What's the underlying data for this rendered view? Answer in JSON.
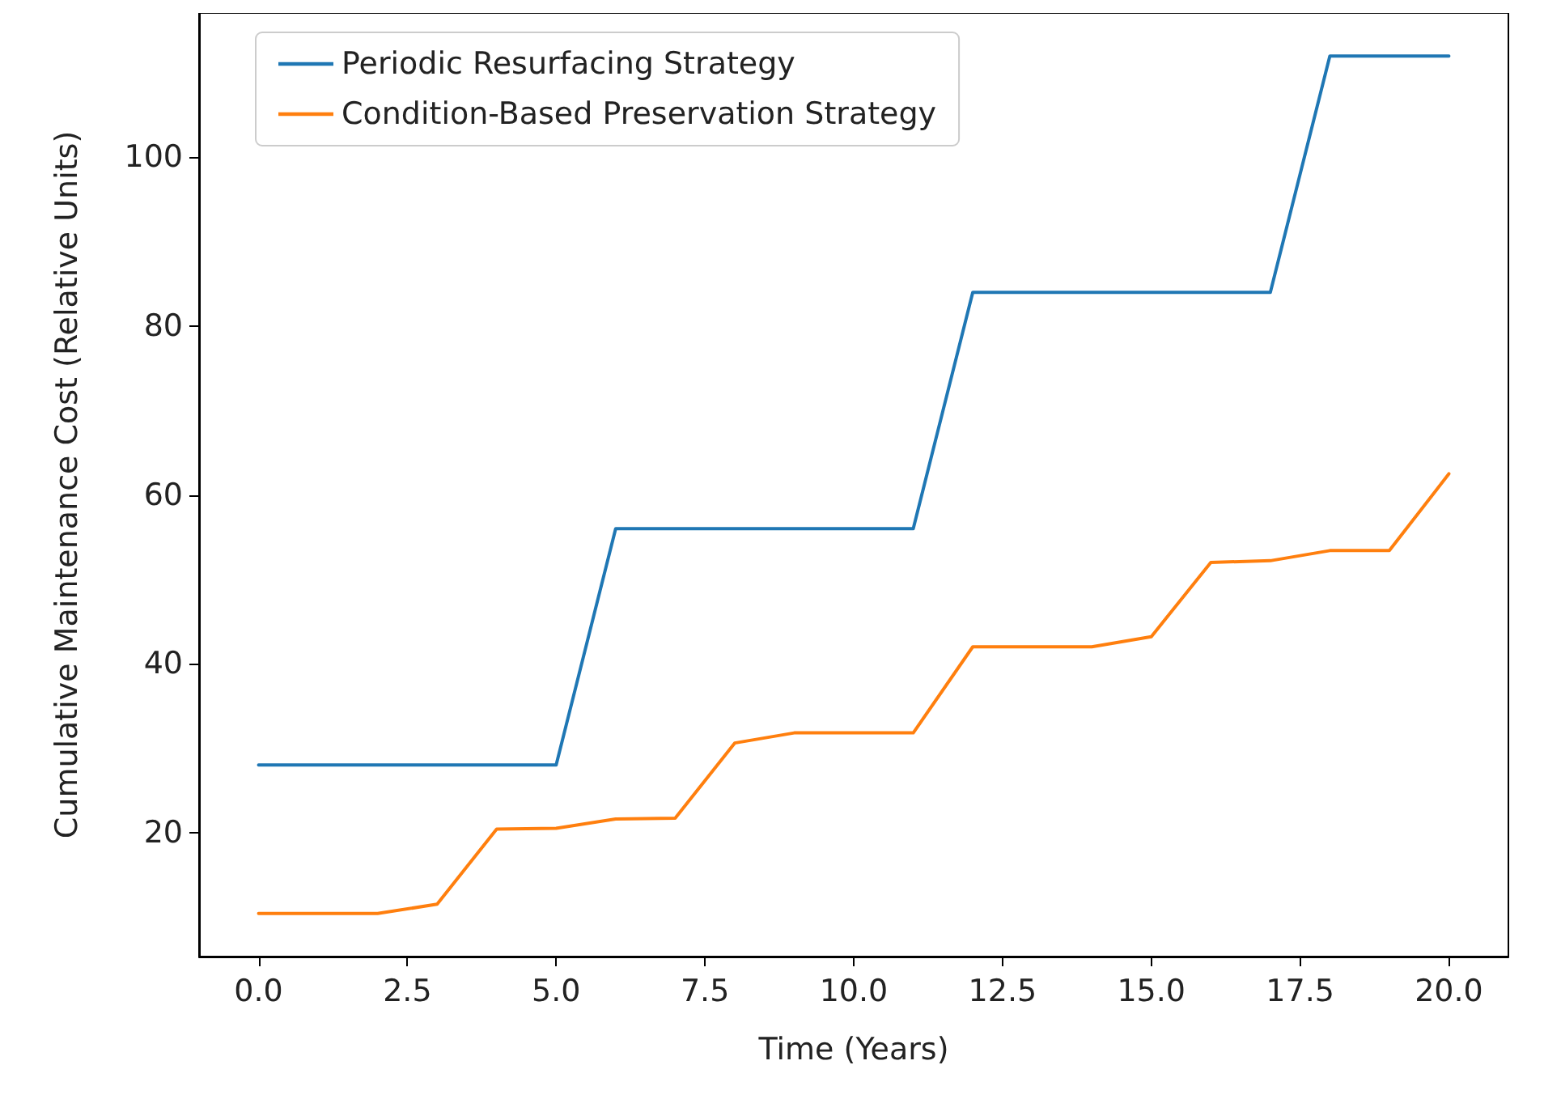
{
  "chart_data": {
    "type": "line",
    "xlabel": "Time (Years)",
    "ylabel": "Cumulative Maintenance Cost (Relative Units)",
    "x": [
      0,
      1,
      2,
      3,
      4,
      5,
      6,
      7,
      8,
      9,
      10,
      11,
      12,
      13,
      14,
      15,
      16,
      17,
      18,
      19,
      20
    ],
    "series": [
      {
        "name": "Periodic Resurfacing Strategy",
        "color": "#1f77b4",
        "values": [
          28,
          28,
          28,
          28,
          28,
          28,
          56,
          56,
          56,
          56,
          56,
          56,
          84,
          84,
          84,
          84,
          84,
          84,
          112,
          112,
          112
        ]
      },
      {
        "name": "Condition-Based Preservation Strategy",
        "color": "#ff7f0e",
        "values": [
          10.4,
          10.4,
          10.4,
          11.5,
          20.4,
          20.5,
          21.6,
          21.7,
          30.6,
          31.8,
          31.8,
          31.8,
          42,
          42,
          42,
          43.2,
          52,
          52.2,
          53.4,
          53.4,
          62.5
        ]
      }
    ],
    "xlim": [
      -1,
      21
    ],
    "ylim": [
      5.3,
      117.1
    ],
    "xticks": [
      {
        "value": 0,
        "label": "0.0"
      },
      {
        "value": 2.5,
        "label": "2.5"
      },
      {
        "value": 5,
        "label": "5.0"
      },
      {
        "value": 7.5,
        "label": "7.5"
      },
      {
        "value": 10,
        "label": "10.0"
      },
      {
        "value": 12.5,
        "label": "12.5"
      },
      {
        "value": 15,
        "label": "15.0"
      },
      {
        "value": 17.5,
        "label": "17.5"
      },
      {
        "value": 20,
        "label": "20.0"
      }
    ],
    "yticks": [
      20,
      40,
      60,
      80,
      100
    ],
    "legend": "top left",
    "grid": false,
    "marker": "none",
    "line_style": "solid"
  }
}
